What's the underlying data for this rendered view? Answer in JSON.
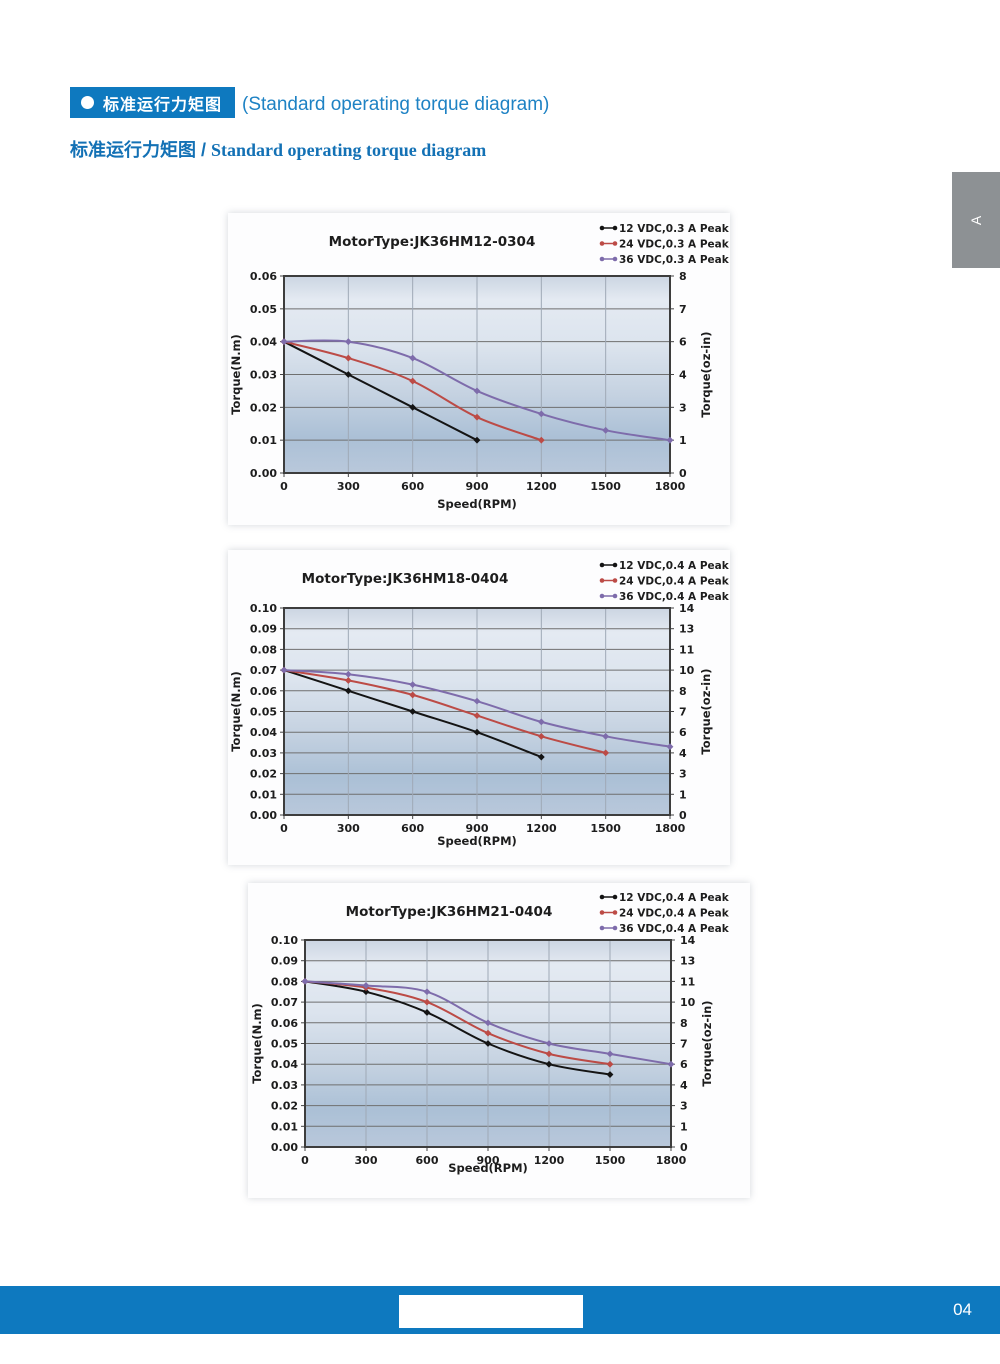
{
  "page": {
    "side_tab_label": "A",
    "page_number": "04"
  },
  "header": {
    "badge_bullet": "●",
    "badge_text": "标准运行力矩图",
    "subtitle": "(Standard operating torque diagram)",
    "section_title_zh": "标准运行力矩图 /",
    "section_title_en": "Standard operating torque diagram"
  },
  "colors": {
    "accent_blue": "#0e79bf",
    "series_12vdc": "#141414",
    "series_24vdc": "#bc4b46",
    "series_36vdc": "#7e6cab",
    "grid_horizontal": "#6f6f6f",
    "grid_vertical": "#9fa9b6",
    "plot_border": "#3d3d3d"
  },
  "chart_data": [
    {
      "type": "line",
      "title": "MotorType:JK36HM12-0304",
      "xlabel": "Speed(RPM)",
      "ylabel_left": "Torque(N.m)",
      "ylabel_right": "Torque(oz-in)",
      "xlim": [
        0,
        1800
      ],
      "ylim": [
        0,
        0.06
      ],
      "x_ticks": [
        0,
        300,
        600,
        900,
        1200,
        1500,
        1800
      ],
      "y_ticks_left": [
        "0.06",
        "0.05",
        "0.04",
        "0.03",
        "0.02",
        "0.01",
        "0.00"
      ],
      "y_ticks_right": [
        "8",
        "7",
        "6",
        "4",
        "3",
        "1",
        "0"
      ],
      "grid": true,
      "legend_position": "top-right",
      "series": [
        {
          "name": "12 VDC,0.3 A Peak",
          "color_key": "series_12vdc",
          "x": [
            0,
            300,
            600,
            900
          ],
          "y": [
            0.04,
            0.03,
            0.02,
            0.01
          ]
        },
        {
          "name": "24 VDC,0.3 A Peak",
          "color_key": "series_24vdc",
          "x": [
            0,
            300,
            600,
            900,
            1200
          ],
          "y": [
            0.04,
            0.035,
            0.028,
            0.017,
            0.01
          ]
        },
        {
          "name": "36 VDC,0.3 A Peak",
          "color_key": "series_36vdc",
          "x": [
            0,
            300,
            600,
            900,
            1200,
            1500,
            1800
          ],
          "y": [
            0.04,
            0.04,
            0.035,
            0.025,
            0.018,
            0.013,
            0.01
          ]
        }
      ]
    },
    {
      "type": "line",
      "title": "MotorType:JK36HM18-0404",
      "xlabel": "Speed(RPM)",
      "ylabel_left": "Torque(N.m)",
      "ylabel_right": "Torque(oz-in)",
      "xlim": [
        0,
        1800
      ],
      "ylim": [
        0,
        0.1
      ],
      "x_ticks": [
        0,
        300,
        600,
        900,
        1200,
        1500,
        1800
      ],
      "y_ticks_left": [
        "0.10",
        "0.09",
        "0.08",
        "0.07",
        "0.06",
        "0.05",
        "0.04",
        "0.03",
        "0.02",
        "0.01",
        "0.00"
      ],
      "y_ticks_right": [
        "14",
        "13",
        "11",
        "10",
        "8",
        "7",
        "6",
        "4",
        "3",
        "1",
        "0"
      ],
      "grid": true,
      "legend_position": "top-right",
      "series": [
        {
          "name": "12 VDC,0.4 A Peak",
          "color_key": "series_12vdc",
          "x": [
            0,
            300,
            600,
            900,
            1200
          ],
          "y": [
            0.07,
            0.06,
            0.05,
            0.04,
            0.028
          ]
        },
        {
          "name": "24 VDC,0.4 A Peak",
          "color_key": "series_24vdc",
          "x": [
            0,
            300,
            600,
            900,
            1200,
            1500
          ],
          "y": [
            0.07,
            0.065,
            0.058,
            0.048,
            0.038,
            0.03
          ]
        },
        {
          "name": "36 VDC,0.4 A Peak",
          "color_key": "series_36vdc",
          "x": [
            0,
            300,
            600,
            900,
            1200,
            1500,
            1800
          ],
          "y": [
            0.07,
            0.068,
            0.063,
            0.055,
            0.045,
            0.038,
            0.033
          ]
        }
      ]
    },
    {
      "type": "line",
      "title": "MotorType:JK36HM21-0404",
      "xlabel": "Speed(RPM)",
      "ylabel_left": "Torque(N.m)",
      "ylabel_right": "Torque(oz-in)",
      "xlim": [
        0,
        1800
      ],
      "ylim": [
        0,
        0.1
      ],
      "x_ticks": [
        0,
        300,
        600,
        900,
        1200,
        1500,
        1800
      ],
      "y_ticks_left": [
        "0.10",
        "0.09",
        "0.08",
        "0.07",
        "0.06",
        "0.05",
        "0.04",
        "0.03",
        "0.02",
        "0.01",
        "0.00"
      ],
      "y_ticks_right": [
        "14",
        "13",
        "11",
        "10",
        "8",
        "7",
        "6",
        "4",
        "3",
        "1",
        "0"
      ],
      "grid": true,
      "legend_position": "top-right",
      "series": [
        {
          "name": "12 VDC,0.4 A Peak",
          "color_key": "series_12vdc",
          "x": [
            0,
            300,
            600,
            900,
            1200,
            1500
          ],
          "y": [
            0.08,
            0.075,
            0.065,
            0.05,
            0.04,
            0.035
          ]
        },
        {
          "name": "24 VDC,0.4 A Peak",
          "color_key": "series_24vdc",
          "x": [
            0,
            300,
            600,
            900,
            1200,
            1500
          ],
          "y": [
            0.08,
            0.077,
            0.07,
            0.055,
            0.045,
            0.04
          ]
        },
        {
          "name": "36 VDC,0.4 A Peak",
          "color_key": "series_36vdc",
          "x": [
            0,
            300,
            600,
            900,
            1200,
            1500,
            1800
          ],
          "y": [
            0.08,
            0.078,
            0.075,
            0.06,
            0.05,
            0.045,
            0.04
          ]
        }
      ]
    }
  ]
}
